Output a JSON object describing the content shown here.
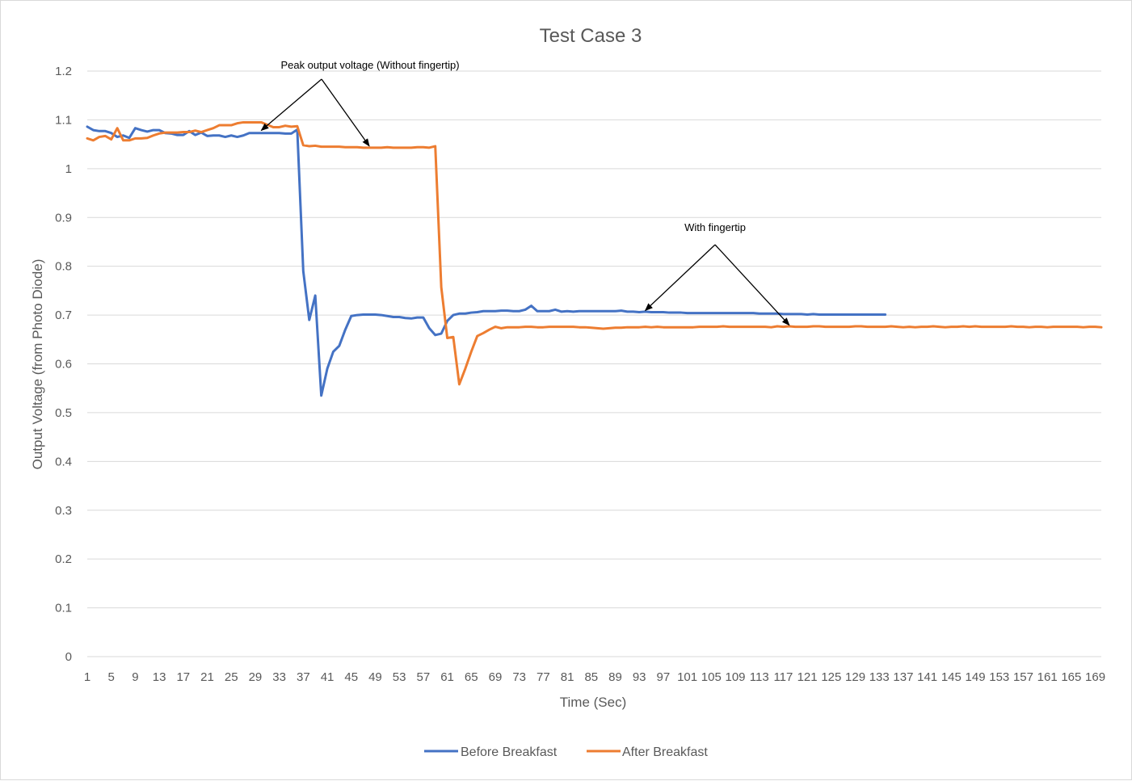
{
  "chart_data": {
    "type": "line",
    "title": "Test Case 3",
    "xlabel": "Time (Sec)",
    "ylabel": "Output Voltage (from Photo Diode)",
    "ylim": [
      0,
      1.2
    ],
    "yticks": [
      0,
      0.1,
      0.2,
      0.3,
      0.4,
      0.5,
      0.6,
      0.7,
      0.8,
      0.9,
      1,
      1.1,
      1.2
    ],
    "xlim": [
      1,
      170
    ],
    "x_tick_step": 4,
    "x_tick_labels": [
      "1",
      "5",
      "9",
      "13",
      "17",
      "21",
      "25",
      "29",
      "33",
      "37",
      "41",
      "45",
      "49",
      "53",
      "57",
      "61",
      "65",
      "69",
      "73",
      "77",
      "81",
      "85",
      "89",
      "93",
      "97",
      "101",
      "105",
      "109",
      "113",
      "117",
      "121",
      "125",
      "129",
      "133",
      "137",
      "141",
      "145",
      "149",
      "153",
      "157",
      "161",
      "165",
      "169"
    ],
    "grid": true,
    "legend_position": "bottom",
    "series": [
      {
        "name": "Before Breakfast",
        "color": "#4472C4",
        "points": [
          [
            1,
            1.086
          ],
          [
            2,
            1.079
          ],
          [
            3,
            1.077
          ],
          [
            4,
            1.077
          ],
          [
            5,
            1.073
          ],
          [
            6,
            1.065
          ],
          [
            7,
            1.068
          ],
          [
            8,
            1.063
          ],
          [
            9,
            1.083
          ],
          [
            10,
            1.079
          ],
          [
            11,
            1.076
          ],
          [
            12,
            1.079
          ],
          [
            13,
            1.079
          ],
          [
            14,
            1.073
          ],
          [
            15,
            1.072
          ],
          [
            16,
            1.069
          ],
          [
            17,
            1.069
          ],
          [
            18,
            1.077
          ],
          [
            19,
            1.069
          ],
          [
            20,
            1.074
          ],
          [
            21,
            1.067
          ],
          [
            22,
            1.068
          ],
          [
            23,
            1.068
          ],
          [
            24,
            1.065
          ],
          [
            25,
            1.068
          ],
          [
            26,
            1.065
          ],
          [
            27,
            1.068
          ],
          [
            28,
            1.073
          ],
          [
            29,
            1.073
          ],
          [
            30,
            1.073
          ],
          [
            31,
            1.073
          ],
          [
            32,
            1.073
          ],
          [
            33,
            1.073
          ],
          [
            34,
            1.072
          ],
          [
            35,
            1.072
          ],
          [
            36,
            1.08
          ],
          [
            37,
            0.79
          ],
          [
            38,
            0.69
          ],
          [
            39,
            0.74
          ],
          [
            40,
            0.535
          ],
          [
            41,
            0.59
          ],
          [
            42,
            0.625
          ],
          [
            43,
            0.637
          ],
          [
            44,
            0.67
          ],
          [
            45,
            0.698
          ],
          [
            46,
            0.7
          ],
          [
            47,
            0.701
          ],
          [
            48,
            0.701
          ],
          [
            49,
            0.701
          ],
          [
            50,
            0.7
          ],
          [
            51,
            0.698
          ],
          [
            52,
            0.696
          ],
          [
            53,
            0.696
          ],
          [
            54,
            0.694
          ],
          [
            55,
            0.693
          ],
          [
            56,
            0.695
          ],
          [
            57,
            0.695
          ],
          [
            58,
            0.673
          ],
          [
            59,
            0.659
          ],
          [
            60,
            0.662
          ],
          [
            61,
            0.688
          ],
          [
            62,
            0.7
          ],
          [
            63,
            0.703
          ],
          [
            64,
            0.703
          ],
          [
            65,
            0.705
          ],
          [
            66,
            0.706
          ],
          [
            67,
            0.708
          ],
          [
            68,
            0.708
          ],
          [
            69,
            0.708
          ],
          [
            70,
            0.709
          ],
          [
            71,
            0.709
          ],
          [
            72,
            0.708
          ],
          [
            73,
            0.708
          ],
          [
            74,
            0.711
          ],
          [
            75,
            0.719
          ],
          [
            76,
            0.708
          ],
          [
            77,
            0.708
          ],
          [
            78,
            0.708
          ],
          [
            79,
            0.711
          ],
          [
            80,
            0.707
          ],
          [
            81,
            0.708
          ],
          [
            82,
            0.707
          ],
          [
            83,
            0.708
          ],
          [
            84,
            0.708
          ],
          [
            85,
            0.708
          ],
          [
            86,
            0.708
          ],
          [
            87,
            0.708
          ],
          [
            88,
            0.708
          ],
          [
            89,
            0.708
          ],
          [
            90,
            0.709
          ],
          [
            91,
            0.707
          ],
          [
            92,
            0.707
          ],
          [
            93,
            0.706
          ],
          [
            94,
            0.707
          ],
          [
            95,
            0.706
          ],
          [
            96,
            0.706
          ],
          [
            97,
            0.706
          ],
          [
            98,
            0.705
          ],
          [
            99,
            0.705
          ],
          [
            100,
            0.705
          ],
          [
            101,
            0.704
          ],
          [
            102,
            0.704
          ],
          [
            103,
            0.704
          ],
          [
            104,
            0.704
          ],
          [
            105,
            0.704
          ],
          [
            106,
            0.704
          ],
          [
            107,
            0.704
          ],
          [
            108,
            0.704
          ],
          [
            109,
            0.704
          ],
          [
            110,
            0.704
          ],
          [
            111,
            0.704
          ],
          [
            112,
            0.704
          ],
          [
            113,
            0.703
          ],
          [
            114,
            0.703
          ],
          [
            115,
            0.703
          ],
          [
            116,
            0.703
          ],
          [
            117,
            0.702
          ],
          [
            118,
            0.702
          ],
          [
            119,
            0.702
          ],
          [
            120,
            0.702
          ],
          [
            121,
            0.701
          ],
          [
            122,
            0.702
          ],
          [
            123,
            0.701
          ],
          [
            124,
            0.701
          ],
          [
            125,
            0.701
          ],
          [
            126,
            0.701
          ],
          [
            127,
            0.701
          ],
          [
            128,
            0.701
          ],
          [
            129,
            0.701
          ],
          [
            130,
            0.701
          ],
          [
            131,
            0.701
          ],
          [
            132,
            0.701
          ],
          [
            133,
            0.701
          ],
          [
            134,
            0.701
          ]
        ]
      },
      {
        "name": "After Breakfast",
        "color": "#ED7D31",
        "points": [
          [
            1,
            1.062
          ],
          [
            2,
            1.058
          ],
          [
            3,
            1.065
          ],
          [
            4,
            1.067
          ],
          [
            5,
            1.06
          ],
          [
            6,
            1.083
          ],
          [
            7,
            1.058
          ],
          [
            8,
            1.058
          ],
          [
            9,
            1.062
          ],
          [
            10,
            1.062
          ],
          [
            11,
            1.063
          ],
          [
            12,
            1.068
          ],
          [
            13,
            1.072
          ],
          [
            14,
            1.074
          ],
          [
            15,
            1.074
          ],
          [
            16,
            1.074
          ],
          [
            17,
            1.075
          ],
          [
            18,
            1.075
          ],
          [
            19,
            1.078
          ],
          [
            20,
            1.075
          ],
          [
            21,
            1.079
          ],
          [
            22,
            1.083
          ],
          [
            23,
            1.089
          ],
          [
            24,
            1.089
          ],
          [
            25,
            1.089
          ],
          [
            26,
            1.093
          ],
          [
            27,
            1.095
          ],
          [
            28,
            1.095
          ],
          [
            29,
            1.095
          ],
          [
            30,
            1.095
          ],
          [
            31,
            1.09
          ],
          [
            32,
            1.085
          ],
          [
            33,
            1.085
          ],
          [
            34,
            1.088
          ],
          [
            35,
            1.086
          ],
          [
            36,
            1.087
          ],
          [
            37,
            1.048
          ],
          [
            38,
            1.046
          ],
          [
            39,
            1.047
          ],
          [
            40,
            1.045
          ],
          [
            41,
            1.045
          ],
          [
            42,
            1.045
          ],
          [
            43,
            1.045
          ],
          [
            44,
            1.044
          ],
          [
            45,
            1.044
          ],
          [
            46,
            1.044
          ],
          [
            47,
            1.043
          ],
          [
            48,
            1.043
          ],
          [
            49,
            1.043
          ],
          [
            50,
            1.043
          ],
          [
            51,
            1.044
          ],
          [
            52,
            1.043
          ],
          [
            53,
            1.043
          ],
          [
            54,
            1.043
          ],
          [
            55,
            1.043
          ],
          [
            56,
            1.044
          ],
          [
            57,
            1.044
          ],
          [
            58,
            1.043
          ],
          [
            59,
            1.046
          ],
          [
            60,
            0.757
          ],
          [
            61,
            0.653
          ],
          [
            62,
            0.655
          ],
          [
            63,
            0.558
          ],
          [
            64,
            0.59
          ],
          [
            65,
            0.625
          ],
          [
            66,
            0.657
          ],
          [
            67,
            0.663
          ],
          [
            68,
            0.67
          ],
          [
            69,
            0.676
          ],
          [
            70,
            0.673
          ],
          [
            71,
            0.675
          ],
          [
            72,
            0.675
          ],
          [
            73,
            0.675
          ],
          [
            74,
            0.676
          ],
          [
            75,
            0.676
          ],
          [
            76,
            0.675
          ],
          [
            77,
            0.675
          ],
          [
            78,
            0.676
          ],
          [
            79,
            0.676
          ],
          [
            80,
            0.676
          ],
          [
            81,
            0.676
          ],
          [
            82,
            0.676
          ],
          [
            83,
            0.675
          ],
          [
            84,
            0.675
          ],
          [
            85,
            0.674
          ],
          [
            86,
            0.673
          ],
          [
            87,
            0.672
          ],
          [
            88,
            0.673
          ],
          [
            89,
            0.674
          ],
          [
            90,
            0.674
          ],
          [
            91,
            0.675
          ],
          [
            92,
            0.675
          ],
          [
            93,
            0.675
          ],
          [
            94,
            0.676
          ],
          [
            95,
            0.675
          ],
          [
            96,
            0.676
          ],
          [
            97,
            0.675
          ],
          [
            98,
            0.675
          ],
          [
            99,
            0.675
          ],
          [
            100,
            0.675
          ],
          [
            101,
            0.675
          ],
          [
            102,
            0.675
          ],
          [
            103,
            0.676
          ],
          [
            104,
            0.676
          ],
          [
            105,
            0.676
          ],
          [
            106,
            0.676
          ],
          [
            107,
            0.677
          ],
          [
            108,
            0.676
          ],
          [
            109,
            0.676
          ],
          [
            110,
            0.676
          ],
          [
            111,
            0.676
          ],
          [
            112,
            0.676
          ],
          [
            113,
            0.676
          ],
          [
            114,
            0.676
          ],
          [
            115,
            0.675
          ],
          [
            116,
            0.677
          ],
          [
            117,
            0.676
          ],
          [
            118,
            0.677
          ],
          [
            119,
            0.676
          ],
          [
            120,
            0.676
          ],
          [
            121,
            0.676
          ],
          [
            122,
            0.677
          ],
          [
            123,
            0.677
          ],
          [
            124,
            0.676
          ],
          [
            125,
            0.676
          ],
          [
            126,
            0.676
          ],
          [
            127,
            0.676
          ],
          [
            128,
            0.676
          ],
          [
            129,
            0.677
          ],
          [
            130,
            0.677
          ],
          [
            131,
            0.676
          ],
          [
            132,
            0.676
          ],
          [
            133,
            0.676
          ],
          [
            134,
            0.676
          ],
          [
            135,
            0.677
          ],
          [
            136,
            0.676
          ],
          [
            137,
            0.675
          ],
          [
            138,
            0.676
          ],
          [
            139,
            0.675
          ],
          [
            140,
            0.676
          ],
          [
            141,
            0.676
          ],
          [
            142,
            0.677
          ],
          [
            143,
            0.676
          ],
          [
            144,
            0.675
          ],
          [
            145,
            0.676
          ],
          [
            146,
            0.676
          ],
          [
            147,
            0.677
          ],
          [
            148,
            0.676
          ],
          [
            149,
            0.677
          ],
          [
            150,
            0.676
          ],
          [
            151,
            0.676
          ],
          [
            152,
            0.676
          ],
          [
            153,
            0.676
          ],
          [
            154,
            0.676
          ],
          [
            155,
            0.677
          ],
          [
            156,
            0.676
          ],
          [
            157,
            0.676
          ],
          [
            158,
            0.675
          ],
          [
            159,
            0.676
          ],
          [
            160,
            0.676
          ],
          [
            161,
            0.675
          ],
          [
            162,
            0.676
          ],
          [
            163,
            0.676
          ],
          [
            164,
            0.676
          ],
          [
            165,
            0.676
          ],
          [
            166,
            0.676
          ],
          [
            167,
            0.675
          ],
          [
            168,
            0.676
          ],
          [
            169,
            0.676
          ],
          [
            170,
            0.675
          ]
        ]
      }
    ],
    "annotations": [
      {
        "text": "Peak output voltage (Without fingertip)",
        "targets": [
          [
            30,
            1.075
          ],
          [
            48,
            1.043
          ]
        ]
      },
      {
        "text": "With fingertip",
        "targets": [
          [
            94,
            0.706
          ],
          [
            118,
            0.676
          ]
        ]
      }
    ]
  }
}
